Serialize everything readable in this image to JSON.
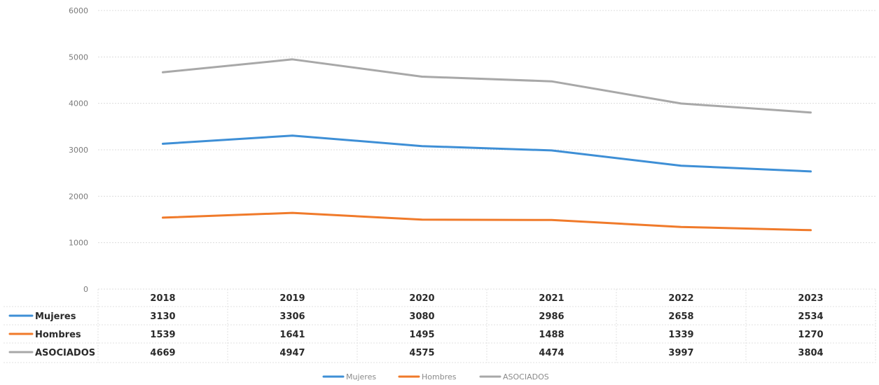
{
  "chart_data": {
    "type": "line",
    "categories": [
      "2018",
      "2019",
      "2020",
      "2021",
      "2022",
      "2023"
    ],
    "series": [
      {
        "name": "Mujeres",
        "values": [
          3130,
          3306,
          3080,
          2986,
          2658,
          2534
        ],
        "color": "#3e8fd6"
      },
      {
        "name": "Hombres",
        "values": [
          1539,
          1641,
          1495,
          1488,
          1339,
          1270
        ],
        "color": "#f07a2a"
      },
      {
        "name": "ASOCIADOS",
        "values": [
          4669,
          4947,
          4575,
          4474,
          3997,
          3804
        ],
        "color": "#a8a8a8"
      }
    ],
    "y_ticks": [
      "0",
      "1000",
      "2000",
      "3000",
      "4000",
      "5000",
      "6000"
    ],
    "ylim": [
      0,
      6000
    ],
    "grid": true,
    "data_table": true,
    "legend": "bottom-center"
  }
}
